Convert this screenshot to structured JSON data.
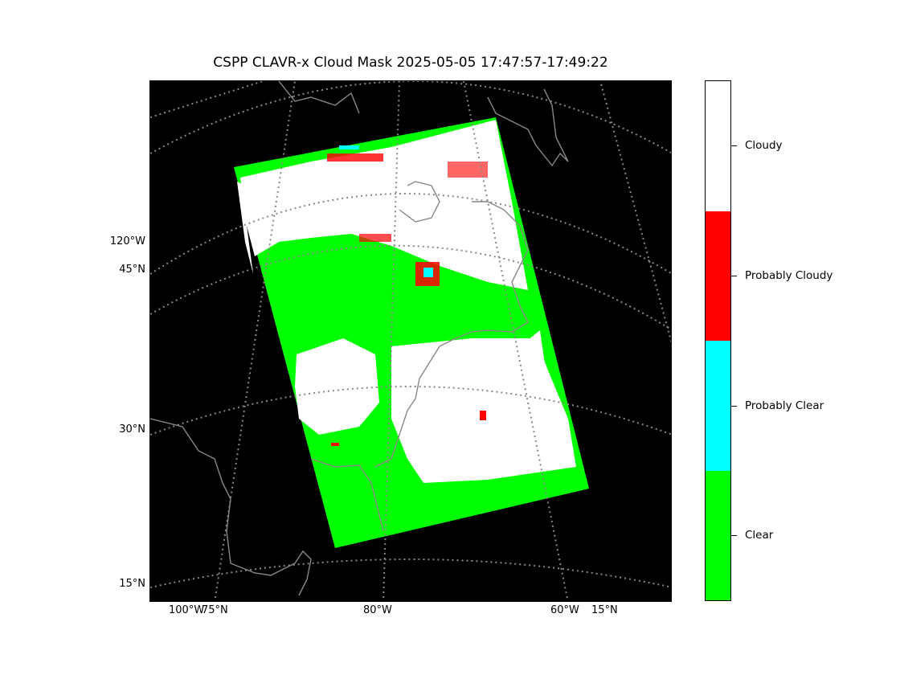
{
  "title": "CSPP CLAVR-x Cloud Mask 2025-05-05 17:47:57-17:49:22",
  "lat_labels": [
    "120°W",
    "45°N",
    "30°N",
    "15°N"
  ],
  "lon_labels": [
    "100°W",
    "75°N",
    "80°W",
    "60°W",
    "15°N"
  ],
  "colorbar": {
    "categories": [
      "Cloudy",
      "Probably Cloudy",
      "Probably Clear",
      "Clear"
    ],
    "colors": [
      "#ffffff",
      "#ff0000",
      "#00ffff",
      "#00ff00"
    ]
  },
  "colors": {
    "background": "#000000",
    "graticule": "#888888",
    "coast": "#888888"
  }
}
